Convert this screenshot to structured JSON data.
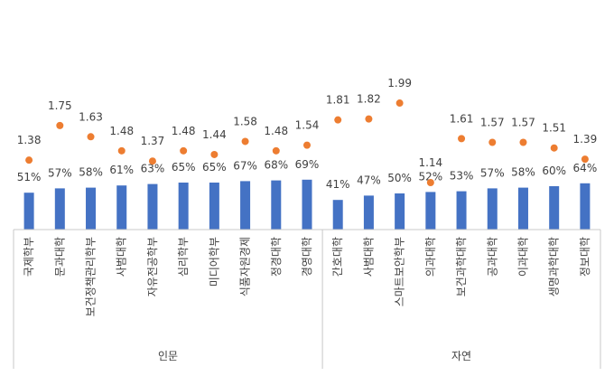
{
  "chart_data": {
    "type": "bar",
    "legend": "none",
    "grid": false,
    "groups": [
      {
        "label": "인문",
        "categories": [
          "국제학부",
          "문과대학",
          "보건정책관리학부",
          "사범대학",
          "자유전공학부",
          "심리학부",
          "미디어학부",
          "식품자원경제",
          "정경대학",
          "경영대학"
        ]
      },
      {
        "label": "자연",
        "categories": [
          "간호대학",
          "사범대학",
          "스마트보안학부",
          "의과대학",
          "보건과학대학",
          "공과대학",
          "이과대학",
          "생명과학대학",
          "정보대학"
        ]
      }
    ],
    "series": [
      {
        "type": "bar",
        "color": "#4472C4",
        "values": [
          51,
          57,
          58,
          61,
          63,
          65,
          65,
          67,
          68,
          69,
          41,
          47,
          50,
          52,
          53,
          57,
          58,
          60,
          64
        ],
        "labels": [
          "51%",
          "57%",
          "58%",
          "61%",
          "63%",
          "65%",
          "65%",
          "67%",
          "68%",
          "69%",
          "41%",
          "47%",
          "50%",
          "52%",
          "53%",
          "57%",
          "58%",
          "60%",
          "64%"
        ]
      },
      {
        "type": "scatter",
        "color": "#ED7D31",
        "values": [
          1.38,
          1.75,
          1.63,
          1.48,
          1.37,
          1.48,
          1.44,
          1.58,
          1.48,
          1.54,
          1.81,
          1.82,
          1.99,
          1.14,
          1.61,
          1.57,
          1.57,
          1.51,
          1.39
        ],
        "labels": [
          "1.38",
          "1.75",
          "1.63",
          "1.48",
          "1.37",
          "1.48",
          "1.44",
          "1.58",
          "1.48",
          "1.54",
          "1.81",
          "1.82",
          "1.99",
          "1.14",
          "1.61",
          "1.57",
          "1.57",
          "1.51",
          "1.39"
        ]
      }
    ]
  }
}
